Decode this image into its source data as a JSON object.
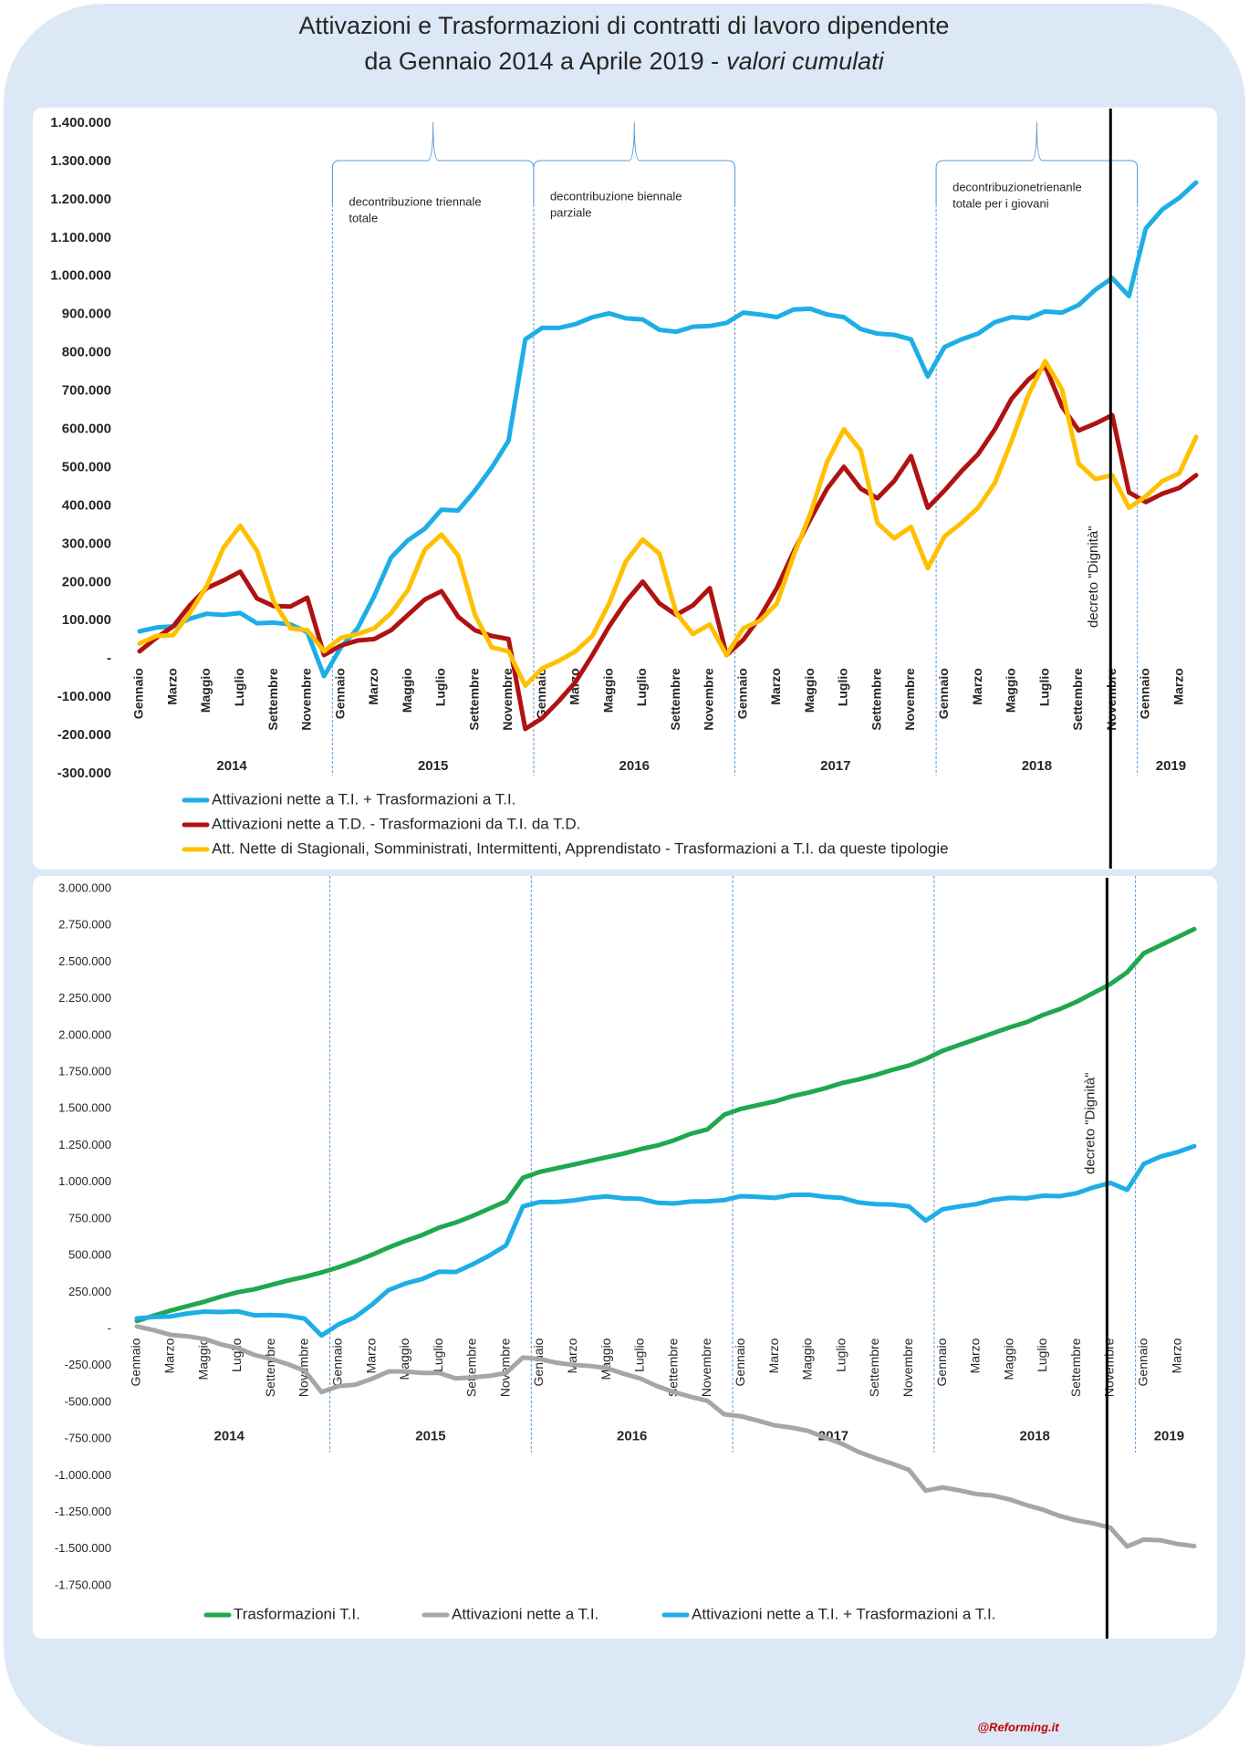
{
  "title": [
    "Attivazioni e Trasformazioni di contratti di lavoro dipendente",
    "da Gennaio 2014 a Aprile 2019 -",
    "valori cumulati"
  ],
  "footer": "@Reforming.it",
  "chart_data": [
    {
      "type": "line",
      "categories": [
        "Gennaio",
        null,
        "Marzo",
        null,
        "Maggio",
        null,
        "Luglio",
        null,
        "Settembre",
        null,
        "Novembre",
        null,
        "Gennaio",
        null,
        "Marzo",
        null,
        "Maggio",
        null,
        "Luglio",
        null,
        "Settembre",
        null,
        "Novembre",
        null,
        "Gennaio",
        null,
        "Marzo",
        null,
        "Maggio",
        null,
        "Luglio",
        null,
        "Settembre",
        null,
        "Novembre",
        null,
        "Gennaio",
        null,
        "Marzo",
        null,
        "Maggio",
        null,
        "Luglio",
        null,
        "Settembre",
        null,
        "Novembre",
        null,
        "Gennaio",
        null,
        "Marzo",
        null,
        "Maggio",
        null,
        "Luglio",
        null,
        "Settembre",
        null,
        "Novembre",
        null,
        "Gennaio",
        null,
        "Marzo",
        null
      ],
      "years": [
        "2014",
        "2015",
        "2016",
        "2017",
        "2018",
        "2019"
      ],
      "ylim": [
        -300000,
        1400000
      ],
      "yticks": [
        {
          "value": 1400000,
          "label": "1.400.000"
        },
        {
          "value": 1300000,
          "label": "1.300.000"
        },
        {
          "value": 1200000,
          "label": "1.200.000"
        },
        {
          "value": 1100000,
          "label": "1.100.000"
        },
        {
          "value": 1000000,
          "label": "1.000.000"
        },
        {
          "value": 900000,
          "label": "900.000"
        },
        {
          "value": 800000,
          "label": "800.000"
        },
        {
          "value": 700000,
          "label": "700.000"
        },
        {
          "value": 600000,
          "label": "600.000"
        },
        {
          "value": 500000,
          "label": "500.000"
        },
        {
          "value": 400000,
          "label": "400.000"
        },
        {
          "value": 300000,
          "label": "300.000"
        },
        {
          "value": 200000,
          "label": "200.000"
        },
        {
          "value": 100000,
          "label": "100.000"
        },
        {
          "value": 0,
          "label": "-"
        },
        {
          "value": -100000,
          "label": "-100.000"
        },
        {
          "value": -200000,
          "label": "-200.000"
        },
        {
          "value": -300000,
          "label": "-300.000"
        }
      ],
      "grid": false,
      "legend": "bottom",
      "annotations": [
        {
          "lines": [
            "decontribuzione triennale",
            "totale"
          ],
          "span": [
            12,
            23
          ]
        },
        {
          "lines": [
            "decontribuzione biennale",
            "parziale"
          ],
          "span": [
            24,
            35
          ]
        },
        {
          "lines": [
            "decontribuzionetrienanle",
            "totale per i giovani"
          ],
          "span": [
            48,
            59
          ]
        }
      ],
      "decree": {
        "text": "decreto \"Dignità\"",
        "x": 57.9
      },
      "series": [
        {
          "name": "Attivazioni nette a T.I. + Trasformazioni a T.I.",
          "color": "#1eaee6",
          "values": [
            72000,
            82000,
            85000,
            105000,
            118000,
            115000,
            120000,
            93000,
            95000,
            90000,
            70000,
            -45000,
            30000,
            80000,
            165000,
            265000,
            310000,
            340000,
            390000,
            388000,
            440000,
            500000,
            570000,
            835000,
            865000,
            865000,
            875000,
            893000,
            903000,
            890000,
            887000,
            860000,
            855000,
            868000,
            870000,
            878000,
            905000,
            900000,
            893000,
            913000,
            915000,
            900000,
            893000,
            862000,
            850000,
            847000,
            835000,
            738000,
            815000,
            835000,
            850000,
            880000,
            893000,
            890000,
            908000,
            905000,
            925000,
            965000,
            995000,
            948000,
            1125000,
            1175000,
            1205000,
            1245000
          ]
        },
        {
          "name": "Attivazioni nette a T.D. - Trasformazioni da T.I. da T.D.",
          "color": "#b01212",
          "values": [
            20000,
            55000,
            85000,
            140000,
            185000,
            205000,
            228000,
            158000,
            138000,
            137000,
            160000,
            10000,
            35000,
            48000,
            52000,
            75000,
            115000,
            155000,
            177000,
            110000,
            75000,
            60000,
            52000,
            -183000,
            -155000,
            -110000,
            -60000,
            10000,
            85000,
            150000,
            202000,
            145000,
            115000,
            140000,
            185000,
            10000,
            50000,
            110000,
            185000,
            280000,
            365000,
            445000,
            502000,
            445000,
            420000,
            465000,
            530000,
            395000,
            440000,
            490000,
            535000,
            600000,
            680000,
            730000,
            765000,
            660000,
            597000,
            615000,
            637000,
            435000,
            410000,
            432000,
            447000,
            480000
          ]
        },
        {
          "name": "Att. Nette di Stagionali, Somministrati, Intermittenti, Apprendistato - Trasformazioni a T.I. da queste tipologie",
          "color": "#ffc000",
          "values": [
            40000,
            60000,
            62000,
            120000,
            190000,
            290000,
            348000,
            283000,
            150000,
            80000,
            75000,
            20000,
            55000,
            65000,
            80000,
            120000,
            180000,
            285000,
            325000,
            270000,
            115000,
            30000,
            20000,
            -70000,
            -25000,
            -5000,
            20000,
            60000,
            145000,
            255000,
            312000,
            275000,
            120000,
            65000,
            90000,
            10000,
            80000,
            100000,
            145000,
            270000,
            380000,
            515000,
            600000,
            545000,
            355000,
            315000,
            345000,
            237000,
            320000,
            355000,
            395000,
            460000,
            570000,
            690000,
            778000,
            705000,
            510000,
            470000,
            480000,
            395000,
            425000,
            465000,
            485000,
            580000
          ]
        }
      ]
    },
    {
      "type": "line",
      "categories": [
        "Gennaio",
        null,
        "Marzo",
        null,
        "Maggio",
        null,
        "Luglio",
        null,
        "Settembre",
        null,
        "Novembre",
        null,
        "Gennaio",
        null,
        "Marzo",
        null,
        "Maggio",
        null,
        "Luglio",
        null,
        "Settembre",
        null,
        "Novembre",
        null,
        "Gennaio",
        null,
        "Marzo",
        null,
        "Maggio",
        null,
        "Luglio",
        null,
        "Settembre",
        null,
        "Novembre",
        null,
        "Gennaio",
        null,
        "Marzo",
        null,
        "Maggio",
        null,
        "Luglio",
        null,
        "Settembre",
        null,
        "Novembre",
        null,
        "Gennaio",
        null,
        "Marzo",
        null,
        "Maggio",
        null,
        "Luglio",
        null,
        "Settembre",
        null,
        "Novembre",
        null,
        "Gennaio",
        null,
        "Marzo",
        null
      ],
      "years": [
        "2014",
        "2015",
        "2016",
        "2017",
        "2018",
        "2019"
      ],
      "ylim": [
        -1750000,
        3000000
      ],
      "yticks": [
        {
          "value": 3000000,
          "label": "3.000.000"
        },
        {
          "value": 2750000,
          "label": "2.750.000"
        },
        {
          "value": 2500000,
          "label": "2.500.000"
        },
        {
          "value": 2250000,
          "label": "2.250.000"
        },
        {
          "value": 2000000,
          "label": "2.000.000"
        },
        {
          "value": 1750000,
          "label": "1.750.000"
        },
        {
          "value": 1500000,
          "label": "1.500.000"
        },
        {
          "value": 1250000,
          "label": "1.250.000"
        },
        {
          "value": 1000000,
          "label": "1.000.000"
        },
        {
          "value": 750000,
          "label": "750.000"
        },
        {
          "value": 500000,
          "label": "500.000"
        },
        {
          "value": 250000,
          "label": "250.000"
        },
        {
          "value": 0,
          "label": "-"
        },
        {
          "value": -250000,
          "label": "-250.000"
        },
        {
          "value": -500000,
          "label": "-500.000"
        },
        {
          "value": -750000,
          "label": "-750.000"
        },
        {
          "value": -1000000,
          "label": "-1.000.000"
        },
        {
          "value": -1250000,
          "label": "-1.250.000"
        },
        {
          "value": -1500000,
          "label": "-1.500.000"
        },
        {
          "value": -1750000,
          "label": "-1.750.000"
        }
      ],
      "grid": false,
      "legend": "bottom",
      "decree": {
        "text": "decreto \"Dignità\"",
        "x": 57.8
      },
      "series": [
        {
          "name": "Trasformazioni  T.I.",
          "color": "#1fa84f",
          "values": [
            55000,
            90000,
            125000,
            155000,
            185000,
            220000,
            250000,
            270000,
            300000,
            330000,
            355000,
            385000,
            420000,
            460000,
            505000,
            555000,
            600000,
            640000,
            690000,
            725000,
            770000,
            820000,
            870000,
            1030000,
            1070000,
            1095000,
            1120000,
            1145000,
            1170000,
            1195000,
            1225000,
            1250000,
            1285000,
            1330000,
            1360000,
            1460000,
            1500000,
            1525000,
            1550000,
            1585000,
            1610000,
            1640000,
            1675000,
            1700000,
            1730000,
            1765000,
            1795000,
            1840000,
            1895000,
            1935000,
            1975000,
            2015000,
            2055000,
            2090000,
            2140000,
            2180000,
            2230000,
            2290000,
            2350000,
            2430000,
            2560000,
            2615000,
            2670000,
            2725000
          ]
        },
        {
          "name": "Attivazioni nette a T.I.",
          "color": "#a6a6a6",
          "values": [
            17000,
            -8000,
            -40000,
            -50000,
            -67000,
            -105000,
            -130000,
            -177000,
            -205000,
            -240000,
            -285000,
            -430000,
            -390000,
            -380000,
            -340000,
            -290000,
            -290000,
            -300000,
            -300000,
            -337000,
            -330000,
            -320000,
            -300000,
            -195000,
            -205000,
            -230000,
            -245000,
            -252000,
            -267000,
            -305000,
            -338000,
            -390000,
            -430000,
            -462000,
            -490000,
            -582000,
            -595000,
            -625000,
            -657000,
            -672000,
            -695000,
            -740000,
            -782000,
            -838000,
            -880000,
            -918000,
            -960000,
            -1102000,
            -1080000,
            -1100000,
            -1125000,
            -1135000,
            -1162000,
            -1200000,
            -1232000,
            -1275000,
            -1305000,
            -1325000,
            -1355000,
            -1482000,
            -1435000,
            -1440000,
            -1465000,
            -1480000
          ]
        },
        {
          "name": "Attivazioni nette a T.I. + Trasformazioni a T.I.",
          "color": "#1eaee6",
          "values": [
            72000,
            82000,
            85000,
            105000,
            118000,
            115000,
            120000,
            93000,
            95000,
            90000,
            70000,
            -45000,
            30000,
            80000,
            165000,
            265000,
            310000,
            340000,
            390000,
            388000,
            440000,
            500000,
            570000,
            835000,
            865000,
            865000,
            875000,
            893000,
            903000,
            890000,
            887000,
            860000,
            855000,
            868000,
            870000,
            878000,
            905000,
            900000,
            893000,
            913000,
            915000,
            900000,
            893000,
            862000,
            850000,
            847000,
            835000,
            738000,
            815000,
            835000,
            850000,
            880000,
            893000,
            890000,
            908000,
            905000,
            925000,
            965000,
            995000,
            948000,
            1125000,
            1175000,
            1205000,
            1245000
          ]
        }
      ]
    }
  ]
}
